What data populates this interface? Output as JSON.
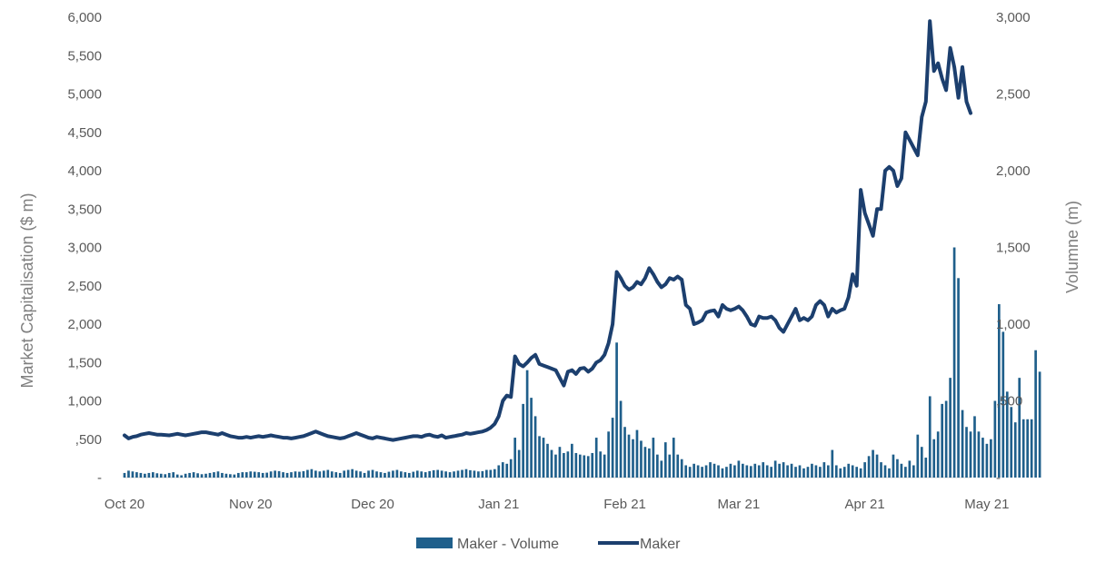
{
  "colors": {
    "bar": "#1f5f8b",
    "line": "#1c3f6e",
    "text": "#595959",
    "axis": "#d9d9d9"
  },
  "chart_data": {
    "type": "line",
    "combo": "bar+line",
    "title": "",
    "ylabel": "Market Capitalisation ($ m)",
    "y2label": "Volumne (m)",
    "ylim": [
      0,
      6000
    ],
    "y2lim": [
      0,
      3000
    ],
    "yticks": [
      "-",
      ",500",
      "1,000",
      "1,500",
      "2,000",
      "2,500",
      "3,000",
      "3,500",
      "4,000",
      "4,500",
      "5,000",
      "5,500",
      "6,000"
    ],
    "y2ticks": [
      "-",
      ",500",
      "1,000",
      "1,500",
      "2,000",
      "2,500",
      "3,000"
    ],
    "x_start": "2020-10-01",
    "xticks": [
      {
        "date": "2020-10-01",
        "label": "Oct 20"
      },
      {
        "date": "2020-11-01",
        "label": "Nov 20"
      },
      {
        "date": "2020-12-01",
        "label": "Dec 20"
      },
      {
        "date": "2021-01-01",
        "label": "Jan 21"
      },
      {
        "date": "2021-02-01",
        "label": "Feb 21"
      },
      {
        "date": "2021-03-01",
        "label": "Mar 21"
      },
      {
        "date": "2021-04-01",
        "label": "Apr 21"
      },
      {
        "date": "2021-05-01",
        "label": "May 21"
      }
    ],
    "legend_position": "bottom",
    "series": [
      {
        "name": "Maker - Volume",
        "type": "bar",
        "axis": "right",
        "values": [
          30,
          45,
          40,
          35,
          30,
          25,
          30,
          35,
          28,
          25,
          22,
          30,
          35,
          20,
          15,
          25,
          30,
          35,
          28,
          22,
          25,
          30,
          35,
          40,
          30,
          25,
          22,
          20,
          30,
          35,
          35,
          40,
          38,
          35,
          30,
          32,
          40,
          45,
          42,
          35,
          30,
          35,
          40,
          38,
          42,
          50,
          55,
          45,
          40,
          45,
          50,
          40,
          35,
          30,
          45,
          50,
          55,
          45,
          40,
          30,
          45,
          50,
          40,
          35,
          30,
          38,
          45,
          50,
          40,
          35,
          30,
          38,
          45,
          40,
          35,
          42,
          48,
          50,
          45,
          40,
          35,
          40,
          45,
          50,
          55,
          48,
          45,
          40,
          42,
          50,
          50,
          55,
          80,
          100,
          90,
          120,
          260,
          180,
          480,
          700,
          520,
          400,
          270,
          260,
          220,
          180,
          150,
          200,
          160,
          170,
          220,
          160,
          150,
          145,
          140,
          160,
          260,
          170,
          150,
          300,
          390,
          880,
          500,
          330,
          280,
          250,
          310,
          240,
          200,
          190,
          260,
          150,
          110,
          230,
          150,
          260,
          150,
          120,
          80,
          70,
          90,
          80,
          70,
          80,
          100,
          90,
          80,
          60,
          70,
          90,
          80,
          110,
          90,
          80,
          75,
          90,
          80,
          100,
          80,
          70,
          110,
          90,
          100,
          80,
          90,
          70,
          80,
          60,
          70,
          90,
          80,
          70,
          100,
          80,
          180,
          80,
          60,
          70,
          90,
          80,
          70,
          60,
          100,
          140,
          180,
          150,
          100,
          80,
          60,
          150,
          120,
          90,
          70,
          110,
          80,
          280,
          200,
          130,
          530,
          250,
          300,
          480,
          500,
          650,
          1500,
          1300,
          440,
          330,
          300,
          400,
          300,
          260,
          220,
          250,
          500,
          1130,
          950,
          560,
          460,
          360,
          650,
          380,
          380,
          380,
          830,
          690
        ]
      },
      {
        "name": "Maker",
        "type": "line",
        "axis": "left",
        "values": [
          550,
          510,
          530,
          540,
          560,
          570,
          580,
          570,
          560,
          560,
          555,
          550,
          560,
          570,
          560,
          550,
          560,
          570,
          580,
          590,
          590,
          580,
          570,
          560,
          580,
          560,
          540,
          530,
          520,
          520,
          530,
          520,
          530,
          540,
          530,
          540,
          550,
          540,
          530,
          520,
          520,
          510,
          520,
          530,
          540,
          560,
          580,
          600,
          580,
          560,
          540,
          530,
          520,
          510,
          520,
          540,
          560,
          580,
          560,
          540,
          520,
          510,
          530,
          520,
          510,
          500,
          490,
          500,
          510,
          520,
          530,
          540,
          540,
          530,
          550,
          560,
          540,
          530,
          550,
          520,
          530,
          540,
          550,
          560,
          580,
          570,
          580,
          590,
          600,
          620,
          650,
          700,
          800,
          1000,
          1070,
          1050,
          1580,
          1480,
          1450,
          1500,
          1560,
          1600,
          1480,
          1460,
          1440,
          1420,
          1400,
          1300,
          1200,
          1380,
          1400,
          1350,
          1420,
          1430,
          1380,
          1420,
          1500,
          1530,
          1600,
          1750,
          2000,
          2680,
          2600,
          2500,
          2450,
          2480,
          2550,
          2520,
          2600,
          2730,
          2650,
          2550,
          2480,
          2520,
          2600,
          2580,
          2620,
          2580,
          2250,
          2200,
          2000,
          2020,
          2050,
          2150,
          2170,
          2180,
          2100,
          2250,
          2200,
          2180,
          2200,
          2230,
          2180,
          2100,
          2000,
          1980,
          2100,
          2080,
          2080,
          2100,
          2050,
          1950,
          1900,
          2000,
          2100,
          2200,
          2050,
          2080,
          2050,
          2100,
          2250,
          2300,
          2250,
          2100,
          2200,
          2150,
          2180,
          2200,
          2350,
          2650,
          2500,
          3750,
          3450,
          3300,
          3150,
          3500,
          3500,
          4000,
          4050,
          4000,
          3800,
          3900,
          4500,
          4400,
          4300,
          4200,
          4700,
          4900,
          5950,
          5300,
          5400,
          5200,
          5050,
          5600,
          5350,
          4950,
          5350,
          4900,
          4750
        ]
      }
    ]
  }
}
